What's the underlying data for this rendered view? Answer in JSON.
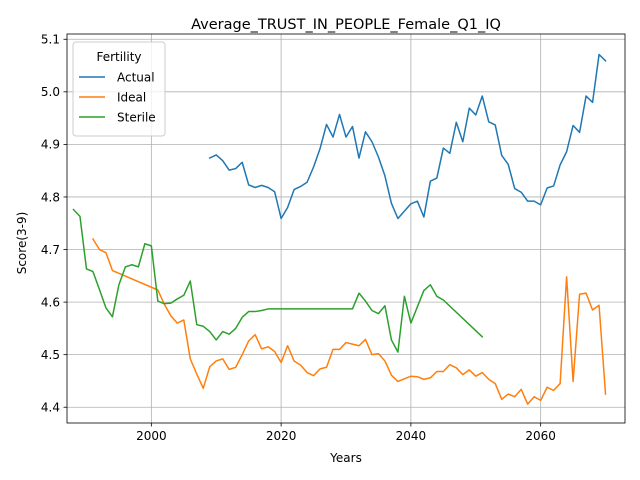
{
  "chart_data": {
    "type": "line",
    "title": "Average_TRUST_IN_PEOPLE_Female_Q1_IQ",
    "xlabel": "Years",
    "ylabel": "Score(3-9)",
    "xlim": [
      1987,
      2073
    ],
    "ylim": [
      4.37,
      5.11
    ],
    "xticks": [
      2000,
      2020,
      2040,
      2060
    ],
    "yticks": [
      4.4,
      4.5,
      4.6,
      4.7,
      4.8,
      4.9,
      5.0,
      5.1
    ],
    "grid": true,
    "legend": {
      "title": "Fertility",
      "placement": "top-left"
    },
    "series": [
      {
        "name": "Actual",
        "color": "#1f77b4",
        "points": [
          [
            2009,
            4.874
          ],
          [
            2010,
            4.88
          ],
          [
            2011,
            4.869
          ],
          [
            2012,
            4.851
          ],
          [
            2013,
            4.854
          ],
          [
            2014,
            4.866
          ],
          [
            2015,
            4.823
          ],
          [
            2016,
            4.818
          ],
          [
            2017,
            4.822
          ],
          [
            2018,
            4.818
          ],
          [
            2019,
            4.81
          ],
          [
            2020,
            4.759
          ],
          [
            2021,
            4.78
          ],
          [
            2022,
            4.814
          ],
          [
            2023,
            4.82
          ],
          [
            2024,
            4.828
          ],
          [
            2025,
            4.857
          ],
          [
            2026,
            4.892
          ],
          [
            2027,
            4.938
          ],
          [
            2028,
            4.914
          ],
          [
            2029,
            4.957
          ],
          [
            2030,
            4.914
          ],
          [
            2031,
            4.934
          ],
          [
            2032,
            4.874
          ],
          [
            2033,
            4.924
          ],
          [
            2034,
            4.905
          ],
          [
            2035,
            4.876
          ],
          [
            2036,
            4.84
          ],
          [
            2037,
            4.788
          ],
          [
            2038,
            4.759
          ],
          [
            2039,
            4.773
          ],
          [
            2040,
            4.787
          ],
          [
            2041,
            4.792
          ],
          [
            2042,
            4.762
          ],
          [
            2043,
            4.83
          ],
          [
            2044,
            4.836
          ],
          [
            2045,
            4.893
          ],
          [
            2046,
            4.883
          ],
          [
            2047,
            4.942
          ],
          [
            2048,
            4.905
          ],
          [
            2049,
            4.969
          ],
          [
            2050,
            4.956
          ],
          [
            2051,
            4.992
          ],
          [
            2052,
            4.943
          ],
          [
            2053,
            4.937
          ],
          [
            2054,
            4.879
          ],
          [
            2055,
            4.862
          ],
          [
            2056,
            4.816
          ],
          [
            2057,
            4.809
          ],
          [
            2058,
            4.792
          ],
          [
            2059,
            4.792
          ],
          [
            2060,
            4.785
          ],
          [
            2061,
            4.817
          ],
          [
            2062,
            4.821
          ],
          [
            2063,
            4.861
          ],
          [
            2064,
            4.886
          ],
          [
            2065,
            4.936
          ],
          [
            2066,
            4.923
          ],
          [
            2067,
            4.992
          ],
          [
            2068,
            4.98
          ],
          [
            2069,
            5.071
          ],
          [
            2070,
            5.059
          ]
        ]
      },
      {
        "name": "Ideal",
        "color": "#ff7f0e",
        "points": [
          [
            1991,
            4.72
          ],
          [
            1992,
            4.7
          ],
          [
            1993,
            4.694
          ],
          [
            1994,
            4.66
          ],
          [
            2001,
            4.623
          ],
          [
            2002,
            4.596
          ],
          [
            2003,
            4.574
          ],
          [
            2004,
            4.56
          ],
          [
            2005,
            4.566
          ],
          [
            2006,
            4.492
          ],
          [
            2007,
            4.463
          ],
          [
            2008,
            4.436
          ],
          [
            2009,
            4.477
          ],
          [
            2010,
            4.488
          ],
          [
            2011,
            4.492
          ],
          [
            2012,
            4.472
          ],
          [
            2013,
            4.476
          ],
          [
            2014,
            4.5
          ],
          [
            2015,
            4.526
          ],
          [
            2016,
            4.538
          ],
          [
            2017,
            4.511
          ],
          [
            2018,
            4.515
          ],
          [
            2019,
            4.506
          ],
          [
            2020,
            4.485
          ],
          [
            2021,
            4.517
          ],
          [
            2022,
            4.488
          ],
          [
            2023,
            4.48
          ],
          [
            2024,
            4.466
          ],
          [
            2025,
            4.46
          ],
          [
            2026,
            4.473
          ],
          [
            2027,
            4.476
          ],
          [
            2028,
            4.51
          ],
          [
            2029,
            4.51
          ],
          [
            2030,
            4.523
          ],
          [
            2031,
            4.52
          ],
          [
            2032,
            4.517
          ],
          [
            2033,
            4.529
          ],
          [
            2034,
            4.5
          ],
          [
            2035,
            4.502
          ],
          [
            2036,
            4.488
          ],
          [
            2037,
            4.461
          ],
          [
            2038,
            4.449
          ],
          [
            2039,
            4.454
          ],
          [
            2040,
            4.459
          ],
          [
            2041,
            4.458
          ],
          [
            2042,
            4.453
          ],
          [
            2043,
            4.456
          ],
          [
            2044,
            4.468
          ],
          [
            2045,
            4.468
          ],
          [
            2046,
            4.481
          ],
          [
            2047,
            4.475
          ],
          [
            2048,
            4.462
          ],
          [
            2049,
            4.471
          ],
          [
            2050,
            4.459
          ],
          [
            2051,
            4.466
          ],
          [
            2052,
            4.453
          ],
          [
            2053,
            4.445
          ],
          [
            2054,
            4.415
          ],
          [
            2055,
            4.425
          ],
          [
            2056,
            4.42
          ],
          [
            2057,
            4.434
          ],
          [
            2058,
            4.406
          ],
          [
            2059,
            4.42
          ],
          [
            2060,
            4.413
          ],
          [
            2061,
            4.438
          ],
          [
            2062,
            4.432
          ],
          [
            2063,
            4.445
          ],
          [
            2064,
            4.648
          ],
          [
            2065,
            4.449
          ],
          [
            2066,
            4.615
          ],
          [
            2067,
            4.617
          ],
          [
            2068,
            4.585
          ],
          [
            2069,
            4.594
          ],
          [
            2070,
            4.425
          ]
        ]
      },
      {
        "name": "Sterile",
        "color": "#2ca02c",
        "points": [
          [
            1988,
            4.776
          ],
          [
            1989,
            4.763
          ],
          [
            1990,
            4.663
          ],
          [
            1991,
            4.658
          ],
          [
            1992,
            4.624
          ],
          [
            1993,
            4.589
          ],
          [
            1994,
            4.572
          ],
          [
            1995,
            4.633
          ],
          [
            1996,
            4.667
          ],
          [
            1997,
            4.671
          ],
          [
            1998,
            4.667
          ],
          [
            1999,
            4.711
          ],
          [
            2000,
            4.707
          ],
          [
            2001,
            4.602
          ],
          [
            2002,
            4.597
          ],
          [
            2003,
            4.598
          ],
          [
            2004,
            4.606
          ],
          [
            2005,
            4.613
          ],
          [
            2006,
            4.64
          ],
          [
            2007,
            4.557
          ],
          [
            2008,
            4.554
          ],
          [
            2009,
            4.544
          ],
          [
            2010,
            4.528
          ],
          [
            2011,
            4.544
          ],
          [
            2012,
            4.539
          ],
          [
            2013,
            4.55
          ],
          [
            2014,
            4.571
          ],
          [
            2015,
            4.582
          ],
          [
            2016,
            4.582
          ],
          [
            2017,
            4.584
          ],
          [
            2018,
            4.587
          ],
          [
            2031,
            4.587
          ],
          [
            2032,
            4.617
          ],
          [
            2033,
            4.602
          ],
          [
            2034,
            4.584
          ],
          [
            2035,
            4.578
          ],
          [
            2036,
            4.593
          ],
          [
            2037,
            4.528
          ],
          [
            2038,
            4.505
          ],
          [
            2039,
            4.611
          ],
          [
            2040,
            4.56
          ],
          [
            2041,
            4.591
          ],
          [
            2042,
            4.622
          ],
          [
            2043,
            4.633
          ],
          [
            2044,
            4.611
          ],
          [
            2045,
            4.604
          ],
          [
            2051,
            4.534
          ]
        ]
      }
    ]
  }
}
